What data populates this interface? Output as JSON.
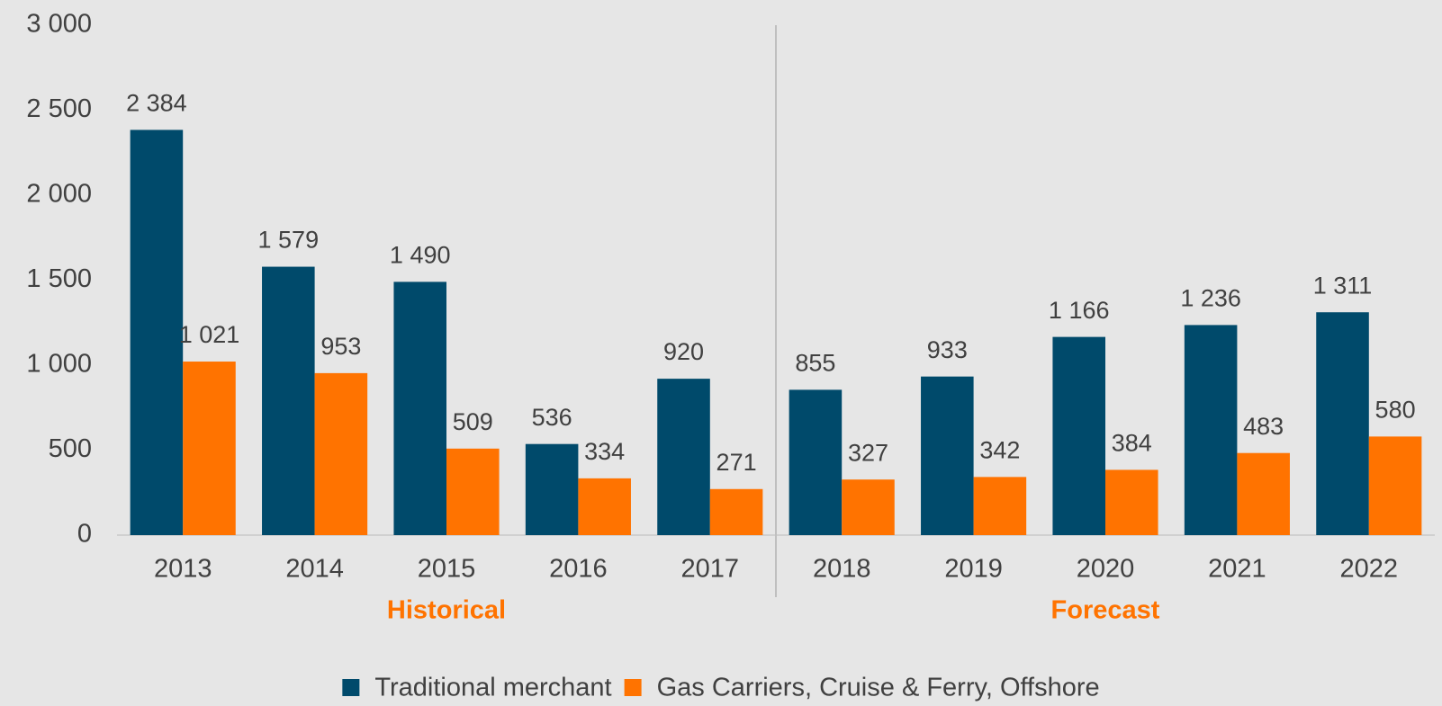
{
  "chart_data": {
    "type": "bar",
    "categories": [
      "2013",
      "2014",
      "2015",
      "2016",
      "2017",
      "2018",
      "2019",
      "2020",
      "2021",
      "2022"
    ],
    "series": [
      {
        "name": "Traditional merchant",
        "color": "#004a6b",
        "values": [
          2384,
          1579,
          1490,
          536,
          920,
          855,
          933,
          1166,
          1236,
          1311
        ],
        "value_labels": [
          "2 384",
          "1 579",
          "1 490",
          "536",
          "920",
          "855",
          "933",
          "1 166",
          "1 236",
          "1 311"
        ]
      },
      {
        "name": "Gas Carriers, Cruise & Ferry, Offshore",
        "color": "#ff7300",
        "values": [
          1021,
          953,
          509,
          334,
          271,
          327,
          342,
          384,
          483,
          580
        ],
        "value_labels": [
          "1 021",
          "953",
          "509",
          "334",
          "271",
          "327",
          "342",
          "384",
          "483",
          "580"
        ]
      }
    ],
    "ylim": [
      0,
      3000
    ],
    "yticks": [
      0,
      500,
      {
        "value": 1000,
        "label": "1 000"
      },
      {
        "value": 1500,
        "label": "1 500"
      },
      {
        "value": 2000,
        "label": "2 000"
      },
      {
        "value": 2500,
        "label": "2 500"
      },
      {
        "value": 3000,
        "label": "3 000"
      }
    ],
    "grid": false,
    "annotations": [
      "Historical",
      "Forecast"
    ],
    "annotation_color": "#ff7300",
    "legend": "bottom"
  }
}
